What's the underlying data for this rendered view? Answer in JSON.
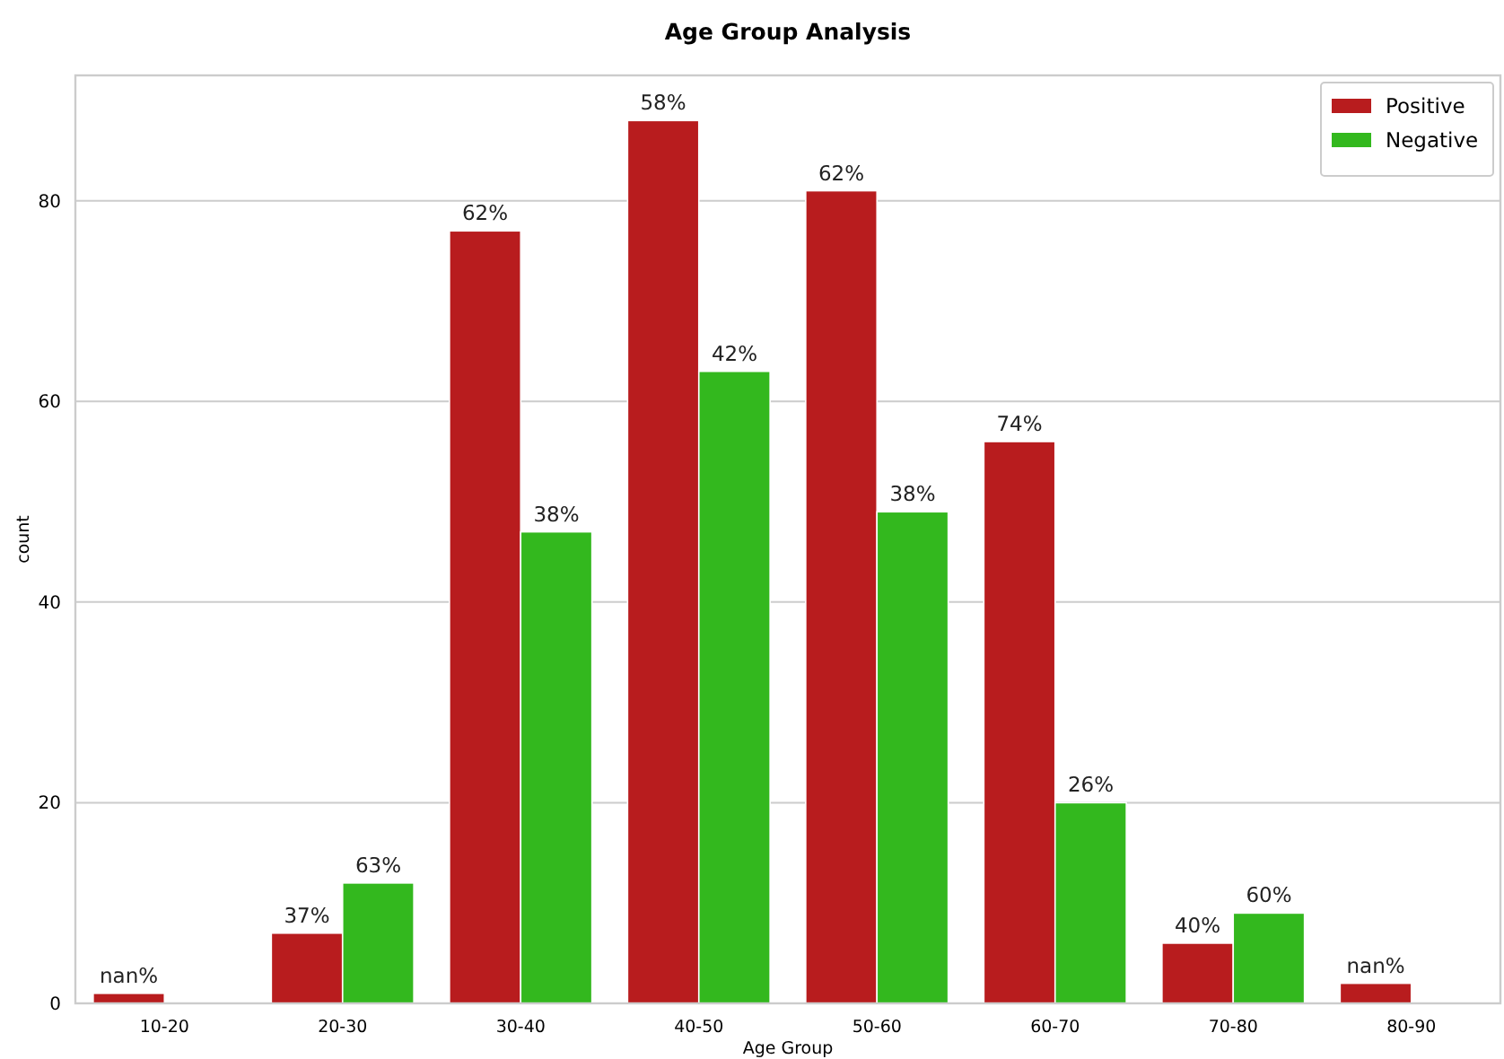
{
  "chart_data": {
    "type": "bar",
    "title": "Age Group Analysis",
    "xlabel": "Age Group",
    "ylabel": "count",
    "categories": [
      "10-20",
      "20-30",
      "30-40",
      "40-50",
      "50-60",
      "60-70",
      "70-80",
      "80-90"
    ],
    "series": [
      {
        "name": "Positive",
        "color": "#b81c1e",
        "values": [
          1,
          7,
          77,
          88,
          81,
          56,
          6,
          2
        ]
      },
      {
        "name": "Negative",
        "color": "#33b81e",
        "values": [
          null,
          12,
          47,
          63,
          49,
          20,
          9,
          null
        ]
      }
    ],
    "annotations": [
      {
        "text": "nan%",
        "x": "10-20",
        "y": 1
      },
      {
        "text": "37%",
        "x": "20-30",
        "y": 7
      },
      {
        "text": "63%",
        "x": "20-30",
        "y": 12
      },
      {
        "text": "62%",
        "x": "30-40",
        "y": 77
      },
      {
        "text": "38%",
        "x": "30-40",
        "y": 47
      },
      {
        "text": "58%",
        "x": "40-50",
        "y": 88
      },
      {
        "text": "42%",
        "x": "40-50",
        "y": 63
      },
      {
        "text": "62%",
        "x": "50-60",
        "y": 81
      },
      {
        "text": "38%",
        "x": "50-60",
        "y": 49
      },
      {
        "text": "74%",
        "x": "60-70",
        "y": 56
      },
      {
        "text": "26%",
        "x": "60-70",
        "y": 20
      },
      {
        "text": "40%",
        "x": "70-80",
        "y": 6
      },
      {
        "text": "60%",
        "x": "70-80",
        "y": 9
      },
      {
        "text": "nan%",
        "x": "80-90",
        "y": 2
      }
    ],
    "ylim": [
      0,
      92.5
    ],
    "yticks": [
      0,
      20,
      40,
      60,
      80
    ],
    "grid": "y",
    "legend": "top right"
  }
}
